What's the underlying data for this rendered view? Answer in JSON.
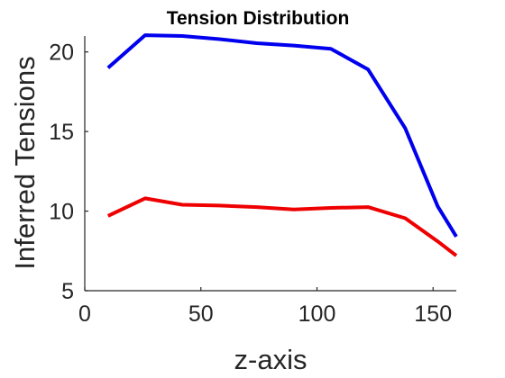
{
  "chart_data": {
    "type": "line",
    "title": "Tension Distribution",
    "xlabel": "z-axis",
    "ylabel": "Inferred Tensions",
    "xlim": [
      0,
      160
    ],
    "ylim": [
      5,
      21
    ],
    "xticks": [
      0,
      50,
      100,
      150
    ],
    "yticks": [
      5,
      10,
      15,
      20
    ],
    "grid": false,
    "series": [
      {
        "color": "#0000ee",
        "x": [
          10,
          26,
          42,
          58,
          74,
          90,
          106,
          122,
          138,
          152,
          160
        ],
        "y": [
          19.0,
          21.05,
          21.0,
          20.8,
          20.55,
          20.4,
          20.2,
          18.9,
          15.2,
          10.3,
          8.4
        ]
      },
      {
        "color": "#ee0000",
        "x": [
          10,
          26,
          42,
          58,
          74,
          90,
          106,
          122,
          138,
          152,
          160
        ],
        "y": [
          9.7,
          10.8,
          10.4,
          10.35,
          10.25,
          10.1,
          10.2,
          10.25,
          9.55,
          8.1,
          7.2
        ]
      }
    ]
  }
}
